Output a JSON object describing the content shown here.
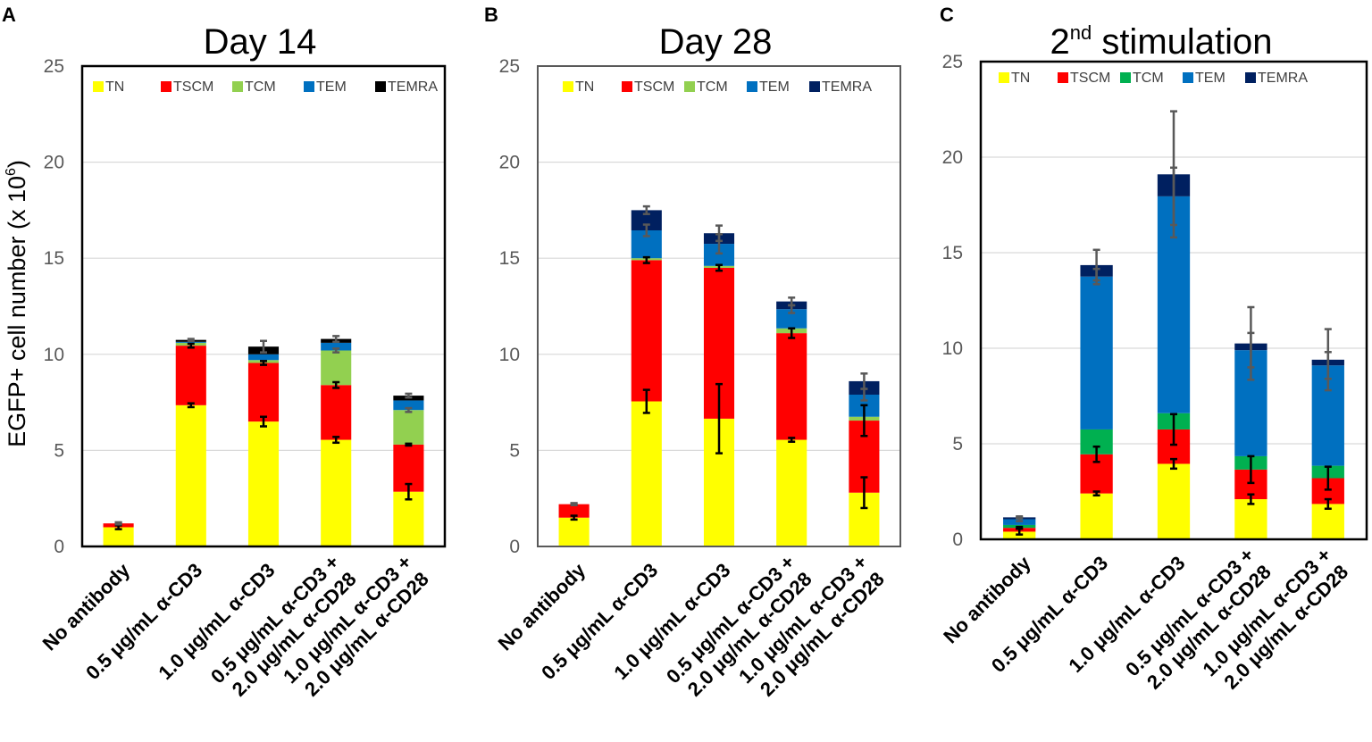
{
  "figure": {
    "ylabel_main": "EGFP+ cell number (x 10",
    "ylabel_exp": "6",
    "ylabel_close": ")"
  },
  "chart_data": [
    {
      "type": "bar",
      "stacked": true,
      "panel": "A",
      "title": "Day 14",
      "ylim": [
        0,
        25
      ],
      "yticks": [
        "0",
        "5",
        "10",
        "15",
        "20",
        "25"
      ],
      "legend": "top",
      "categories": [
        "No antibody",
        "0.5 μg/mL α-CD3",
        "1.0 μg/mL α-CD3",
        "0.5 μg/mL α-CD3 +\n2.0 μg/mL α-CD28",
        "1.0 μg/mL α-CD3 +\n2.0 μg/mL α-CD28"
      ],
      "series": [
        {
          "name": "TN",
          "color": "#ffff00",
          "values": [
            1.0,
            7.35,
            6.5,
            5.55,
            2.85
          ],
          "err": [
            0.1,
            0.1,
            0.25,
            0.15,
            0.4
          ]
        },
        {
          "name": "TSCM",
          "color": "#ff0000",
          "values": [
            0.2,
            3.1,
            3.05,
            2.85,
            2.45
          ],
          "err": [
            0.05,
            0.1,
            0.1,
            0.15,
            0.05
          ]
        },
        {
          "name": "TCM",
          "color": "#92d050",
          "values": [
            0.0,
            0.15,
            0.15,
            1.8,
            1.8
          ],
          "err": [
            0,
            0,
            0,
            0.1,
            0.1
          ]
        },
        {
          "name": "TEM",
          "color": "#0070c0",
          "values": [
            0.0,
            0.05,
            0.3,
            0.4,
            0.5
          ],
          "err": [
            0,
            0,
            0,
            0,
            0
          ]
        },
        {
          "name": "TEMRA",
          "color": "#000000",
          "values": [
            0.0,
            0.1,
            0.4,
            0.2,
            0.25
          ],
          "err": [
            0.05,
            0.05,
            0.3,
            0.15,
            0.1
          ]
        }
      ]
    },
    {
      "type": "bar",
      "stacked": true,
      "panel": "B",
      "title": "Day 28",
      "ylim": [
        0,
        25
      ],
      "yticks": [
        "0",
        "5",
        "10",
        "15",
        "20",
        "25"
      ],
      "legend": "top",
      "categories": [
        "No antibody",
        "0.5 μg/mL α-CD3",
        "1.0 μg/mL α-CD3",
        "0.5 μg/mL α-CD3 +\n2.0 μg/mL α-CD28",
        "1.0 μg/mL α-CD3 +\n2.0 μg/mL α-CD28"
      ],
      "series": [
        {
          "name": "TN",
          "color": "#ffff00",
          "values": [
            1.5,
            7.55,
            6.65,
            5.55,
            2.8
          ],
          "err": [
            0.1,
            0.6,
            1.8,
            0.1,
            0.8
          ]
        },
        {
          "name": "TSCM",
          "color": "#ff0000",
          "values": [
            0.7,
            7.35,
            7.85,
            5.55,
            3.75
          ],
          "err": [
            0.05,
            0.15,
            0.15,
            0.25,
            0.8
          ]
        },
        {
          "name": "TCM",
          "color": "#92d050",
          "values": [
            0.0,
            0.1,
            0.1,
            0.25,
            0.2
          ],
          "err": [
            0,
            0,
            0,
            0,
            0
          ]
        },
        {
          "name": "TEM",
          "color": "#0070c0",
          "values": [
            0.0,
            1.45,
            1.15,
            1.0,
            1.15
          ],
          "err": [
            0,
            0.3,
            0.5,
            0.2,
            0.3
          ]
        },
        {
          "name": "TEMRA",
          "color": "#002060",
          "values": [
            0.0,
            1.05,
            0.55,
            0.4,
            0.7
          ],
          "err": [
            0.05,
            0.2,
            0.4,
            0.2,
            0.4
          ]
        }
      ]
    },
    {
      "type": "bar",
      "stacked": true,
      "panel": "C",
      "title_main": "2",
      "title_sup": "nd",
      "title_rest": " stimulation",
      "ylim": [
        0,
        25
      ],
      "yticks": [
        "0",
        "5",
        "10",
        "15",
        "20",
        "25"
      ],
      "legend": "top",
      "categories": [
        "No antibody",
        "0.5 μg/mL α-CD3",
        "1.0 μg/mL α-CD3",
        "0.5 μg/mL α-CD3 +\n2.0 μg/mL α-CD28",
        "1.0 μg/mL α-CD3 +\n2.0 μg/mL α-CD28"
      ],
      "series": [
        {
          "name": "TN",
          "color": "#ffff00",
          "values": [
            0.4,
            2.4,
            3.95,
            2.1,
            1.85
          ],
          "err": [
            0.15,
            0.1,
            0.25,
            0.25,
            0.25
          ]
        },
        {
          "name": "TSCM",
          "color": "#ff0000",
          "values": [
            0.2,
            2.05,
            1.8,
            1.55,
            1.35
          ],
          "err": [
            0.05,
            0.4,
            0.8,
            0.7,
            0.6
          ]
        },
        {
          "name": "TCM",
          "color": "#00b050",
          "values": [
            0.15,
            1.3,
            0.85,
            0.7,
            0.65
          ],
          "err": [
            0,
            0,
            0,
            0,
            0
          ]
        },
        {
          "name": "TEM",
          "color": "#0070c0",
          "values": [
            0.3,
            8.0,
            11.35,
            5.55,
            5.25
          ],
          "err": [
            0.1,
            0.4,
            1.5,
            0.9,
            0.7
          ]
        },
        {
          "name": "TEMRA",
          "color": "#002060",
          "values": [
            0.1,
            0.6,
            1.15,
            0.35,
            0.3
          ],
          "err": [
            0.05,
            0.8,
            3.3,
            1.9,
            1.6
          ]
        }
      ]
    }
  ]
}
